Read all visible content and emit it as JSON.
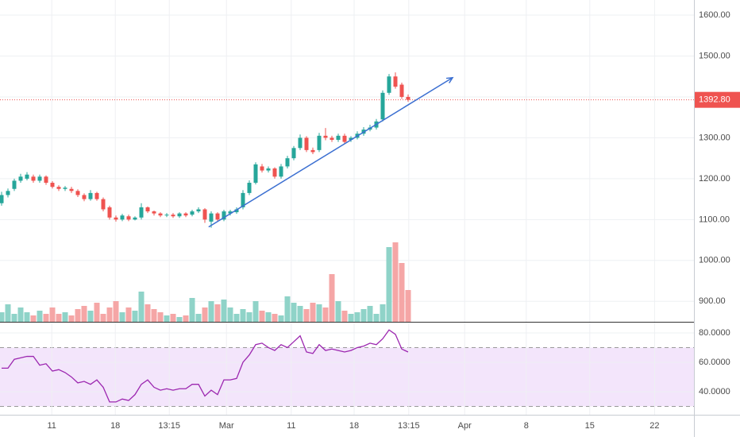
{
  "chart_data": {
    "type": "candlestick",
    "x": [
      0,
      1,
      2,
      3,
      4,
      5,
      6,
      7,
      8,
      9,
      10,
      11,
      12,
      13,
      14,
      15,
      16,
      17,
      18,
      19,
      20,
      21,
      22,
      23,
      24,
      25,
      26,
      27,
      28,
      29,
      30,
      31,
      32,
      33,
      34,
      35,
      36,
      37,
      38,
      39,
      40,
      41,
      42,
      43,
      44,
      45,
      46,
      47,
      48,
      49,
      50,
      51,
      52,
      53,
      54,
      55,
      56,
      57,
      58,
      59,
      60,
      61,
      62,
      63,
      64
    ],
    "open": [
      1140,
      1160,
      1175,
      1195,
      1200,
      1205,
      1195,
      1205,
      1190,
      1180,
      1175,
      1175,
      1170,
      1160,
      1150,
      1165,
      1150,
      1130,
      1105,
      1100,
      1108,
      1100,
      1105,
      1130,
      1120,
      1115,
      1110,
      1112,
      1108,
      1115,
      1112,
      1120,
      1125,
      1095,
      1115,
      1100,
      1115,
      1118,
      1130,
      1165,
      1190,
      1230,
      1220,
      1225,
      1205,
      1230,
      1250,
      1275,
      1300,
      1270,
      1270,
      1305,
      1300,
      1295,
      1305,
      1295,
      1300,
      1310,
      1320,
      1325,
      1345,
      1410,
      1450,
      1430,
      1400
    ],
    "high": [
      1168,
      1176,
      1200,
      1212,
      1216,
      1210,
      1210,
      1208,
      1194,
      1184,
      1182,
      1180,
      1174,
      1164,
      1172,
      1168,
      1154,
      1134,
      1110,
      1114,
      1112,
      1108,
      1140,
      1132,
      1122,
      1118,
      1116,
      1116,
      1118,
      1118,
      1124,
      1130,
      1128,
      1120,
      1118,
      1124,
      1124,
      1130,
      1172,
      1196,
      1240,
      1236,
      1230,
      1228,
      1236,
      1256,
      1280,
      1308,
      1304,
      1276,
      1312,
      1324,
      1305,
      1310,
      1310,
      1304,
      1316,
      1326,
      1332,
      1346,
      1416,
      1456,
      1460,
      1435,
      1406
    ],
    "low": [
      1134,
      1154,
      1170,
      1190,
      1196,
      1190,
      1190,
      1185,
      1176,
      1170,
      1170,
      1165,
      1155,
      1145,
      1146,
      1146,
      1120,
      1100,
      1095,
      1096,
      1096,
      1098,
      1100,
      1116,
      1110,
      1106,
      1106,
      1104,
      1104,
      1106,
      1108,
      1116,
      1092,
      1080,
      1096,
      1096,
      1110,
      1114,
      1125,
      1160,
      1186,
      1215,
      1215,
      1200,
      1200,
      1225,
      1245,
      1270,
      1265,
      1260,
      1265,
      1294,
      1290,
      1290,
      1285,
      1290,
      1296,
      1305,
      1316,
      1320,
      1340,
      1405,
      1420,
      1395,
      1388
    ],
    "close": [
      1160,
      1170,
      1195,
      1205,
      1210,
      1195,
      1205,
      1190,
      1180,
      1175,
      1178,
      1170,
      1160,
      1150,
      1165,
      1150,
      1125,
      1105,
      1100,
      1110,
      1100,
      1105,
      1130,
      1120,
      1115,
      1110,
      1112,
      1108,
      1115,
      1110,
      1120,
      1125,
      1100,
      1115,
      1100,
      1120,
      1120,
      1125,
      1165,
      1190,
      1235,
      1220,
      1225,
      1205,
      1230,
      1250,
      1275,
      1300,
      1270,
      1265,
      1305,
      1300,
      1295,
      1305,
      1290,
      1300,
      1310,
      1320,
      1325,
      1340,
      1410,
      1450,
      1425,
      1400,
      1393
    ],
    "volume": [
      12,
      22,
      10,
      18,
      12,
      8,
      14,
      10,
      18,
      10,
      12,
      8,
      16,
      20,
      14,
      24,
      10,
      18,
      26,
      12,
      18,
      14,
      38,
      22,
      16,
      12,
      8,
      10,
      6,
      8,
      30,
      10,
      18,
      26,
      22,
      28,
      18,
      10,
      16,
      12,
      26,
      14,
      12,
      10,
      8,
      32,
      24,
      20,
      16,
      24,
      22,
      18,
      60,
      26,
      14,
      10,
      12,
      16,
      20,
      10,
      22,
      94,
      100,
      74,
      40
    ],
    "rsi": [
      56,
      56,
      62,
      63,
      64,
      64,
      58,
      59,
      54,
      55,
      53,
      50,
      46,
      47,
      45,
      48,
      43,
      33,
      33,
      35,
      34,
      38,
      45,
      48,
      43,
      41,
      42,
      41,
      42,
      42,
      45,
      45,
      37,
      41,
      38,
      48,
      48,
      49,
      60,
      65,
      72,
      73,
      70,
      68,
      72,
      70,
      74,
      78,
      67,
      66,
      72,
      68,
      69,
      68,
      67,
      68,
      70,
      71,
      73,
      72,
      76,
      82,
      79,
      69,
      67
    ],
    "up_color": "#26a69a",
    "down_color": "#ef5350",
    "up_volume_color": "#8fd3c8",
    "down_volume_color": "#f5a6a6",
    "rsi_color": "#9c27b0",
    "rsi_band_color": "#f3e5fb",
    "rsi_band": [
      30,
      70
    ],
    "last_price": {
      "value": 1392.8,
      "label": "1392.80"
    },
    "trendline": {
      "x": [
        32.6,
        71
      ],
      "y": [
        1082,
        1447
      ],
      "color": "#3b6fd1"
    },
    "xlim": [
      -0.25,
      109
    ],
    "xticks": [
      {
        "value": 7.9,
        "label": "11"
      },
      {
        "value": 17.9,
        "label": "18"
      },
      {
        "value": 26.4,
        "label": "13:15"
      },
      {
        "value": 35.4,
        "label": "Mar"
      },
      {
        "value": 45.6,
        "label": "11"
      },
      {
        "value": 55.5,
        "label": "18"
      },
      {
        "value": 64.1,
        "label": "13:15"
      },
      {
        "value": 72.9,
        "label": "Apr"
      },
      {
        "value": 82.6,
        "label": "8"
      },
      {
        "value": 92.6,
        "label": "15"
      },
      {
        "value": 102.8,
        "label": "22"
      }
    ],
    "ylim": [
      850,
      1637
    ],
    "yticks": [
      {
        "value": 900,
        "label": "900.00"
      },
      {
        "value": 1000,
        "label": "1000.00"
      },
      {
        "value": 1100,
        "label": "1100.00"
      },
      {
        "value": 1200,
        "label": "1200.00"
      },
      {
        "value": 1300,
        "label": "1300.00"
      },
      {
        "value": 1400,
        "label": "1400.00"
      },
      {
        "value": 1500,
        "label": "1500.00"
      },
      {
        "value": 1600,
        "label": "1600.00"
      }
    ],
    "y2lim": [
      24.3,
      87
    ],
    "y2ticks": [
      {
        "value": 40,
        "label": "40.0000"
      },
      {
        "value": 60,
        "label": "60.0000"
      },
      {
        "value": 80,
        "label": "80.0000"
      }
    ],
    "grid": true
  }
}
